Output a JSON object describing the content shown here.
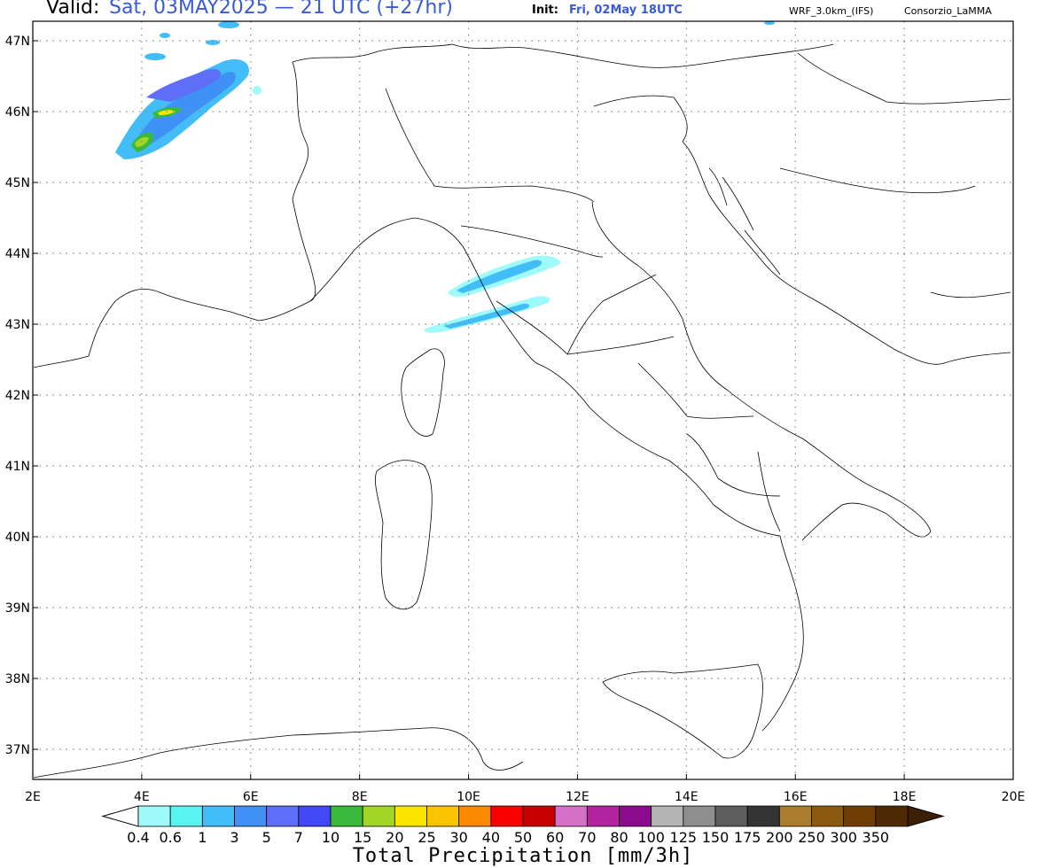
{
  "header": {
    "valid_label": "Valid:",
    "valid_value": "Sat, 03MAY2025 — 21 UTC (+27hr)",
    "init_label": "Init:",
    "init_value": "Fri, 02May 18UTC",
    "model": "WRF_3.0km_(IFS)",
    "credit": "Consorzio_LaMMA",
    "accent_color": "#3a5bd9"
  },
  "map": {
    "lon_labels": [
      "2E",
      "4E",
      "6E",
      "8E",
      "10E",
      "12E",
      "14E",
      "16E",
      "18E",
      "20E"
    ],
    "lat_labels": [
      "47N",
      "46N",
      "45N",
      "44N",
      "43N",
      "42N",
      "41N",
      "40N",
      "39N",
      "38N",
      "37N"
    ],
    "gridlines": "dotted",
    "precip_areas": [
      {
        "area": "Switzerland / French Alps",
        "max_class": "15"
      },
      {
        "area": "Ligurian Sea north",
        "max_class": "3"
      },
      {
        "area": "Ligurian Sea south",
        "max_class": "3"
      }
    ]
  },
  "colorbar": {
    "title": "Total Precipitation [mm/3h]",
    "labels": [
      "0.4",
      "0.6",
      "1",
      "3",
      "5",
      "7",
      "10",
      "15",
      "20",
      "25",
      "30",
      "40",
      "50",
      "60",
      "70",
      "80",
      "100",
      "125",
      "150",
      "175",
      "200",
      "250",
      "300",
      "350"
    ],
    "colors": [
      "#9ffbfb",
      "#5af4f4",
      "#42bdf8",
      "#3f91f5",
      "#5e6ef6",
      "#4348f5",
      "#3aba3c",
      "#a1d626",
      "#fbe600",
      "#fbc400",
      "#fb8a00",
      "#fb0000",
      "#c80000",
      "#d670c9",
      "#b424a0",
      "#8c0a8c",
      "#b4b4b4",
      "#8e8e8e",
      "#5e5e5e",
      "#343434",
      "#aa7d2c",
      "#8b5a0e",
      "#6e3e06",
      "#4e2a05"
    ]
  }
}
